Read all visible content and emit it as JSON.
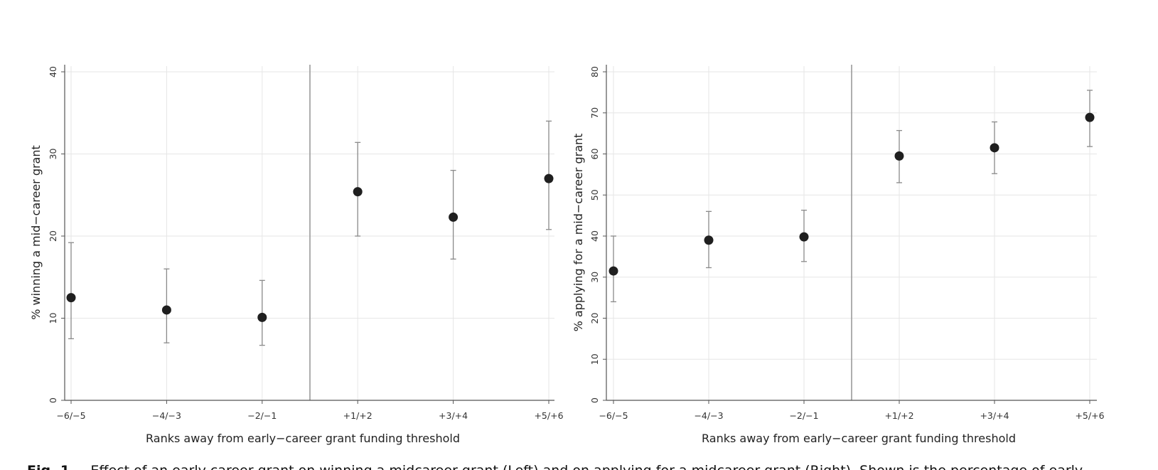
{
  "chart_data": [
    {
      "type": "scatter",
      "categories": [
        "−6/−5",
        "−4/−3",
        "−2/−1",
        "+1/+2",
        "+3/+4",
        "+5/+6"
      ],
      "values": [
        12.5,
        11.0,
        10.1,
        25.4,
        22.3,
        27.0
      ],
      "ci_low": [
        7.5,
        7.0,
        6.7,
        20.0,
        17.2,
        20.8
      ],
      "ci_high": [
        19.2,
        16.0,
        14.6,
        31.4,
        28.0,
        34.0
      ],
      "xlabel": "Ranks away from early−career grant funding threshold",
      "ylabel": "% winning a mid−career grant",
      "ylim": [
        0,
        40
      ],
      "yticks": [
        "0",
        "10",
        "20",
        "30",
        "40"
      ],
      "grid": true,
      "threshold_line": "between −2/−1 and +1/+2"
    },
    {
      "type": "scatter",
      "categories": [
        "−6/−5",
        "−4/−3",
        "−2/−1",
        "+1/+2",
        "+3/+4",
        "+5/+6"
      ],
      "values": [
        31.5,
        39.0,
        39.8,
        59.5,
        61.5,
        68.9
      ],
      "ci_low": [
        24.0,
        32.3,
        33.8,
        53.0,
        55.2,
        61.8
      ],
      "ci_high": [
        40.0,
        46.0,
        46.3,
        65.7,
        67.8,
        75.5
      ],
      "xlabel": "Ranks away from early−career grant funding threshold",
      "ylabel": "% applying for a mid−career grant",
      "ylim": [
        0,
        80
      ],
      "yticks": [
        "0",
        "10",
        "20",
        "30",
        "40",
        "50",
        "60",
        "70",
        "80"
      ],
      "grid": true,
      "threshold_line": "between −2/−1 and +1/+2"
    }
  ],
  "caption": {
    "label": "Fig. 1.",
    "text": "Effect of an early career grant on winning a midcareer grant (Left) and on applying for a midcareer grant (Right). Shown is the percentage of early"
  },
  "colors": {
    "point": "#1f1f1f",
    "errorbar": "#8a8a8a",
    "grid": "#e6e6e6",
    "axis": "#555555",
    "threshold": "#9a9a9a"
  }
}
